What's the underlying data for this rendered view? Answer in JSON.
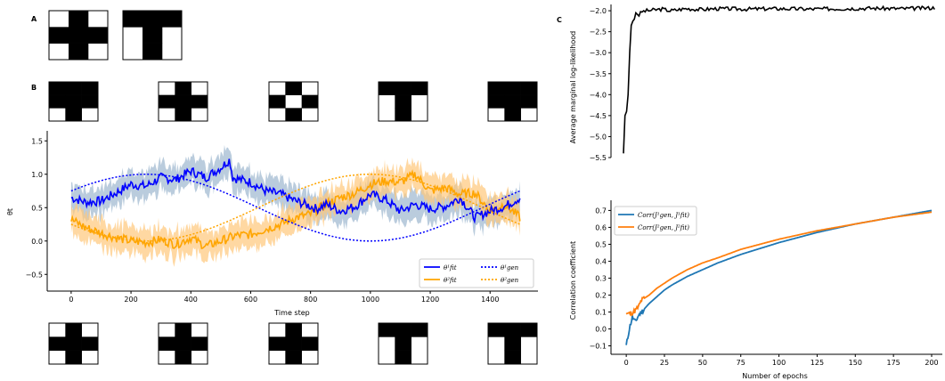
{
  "panels": {
    "A": "A",
    "B": "B",
    "C": "C"
  },
  "patterns": {
    "cross": [
      [
        0,
        1,
        0
      ],
      [
        1,
        1,
        1
      ],
      [
        0,
        1,
        0
      ]
    ],
    "tee": [
      [
        1,
        1,
        1
      ],
      [
        0,
        1,
        0
      ],
      [
        0,
        1,
        0
      ]
    ],
    "checker": [
      [
        0,
        1,
        0
      ],
      [
        1,
        0,
        1
      ],
      [
        0,
        1,
        0
      ]
    ]
  },
  "row_a": [
    "cross",
    "tee"
  ],
  "row_b": [
    "tee_b",
    "cross",
    "checker",
    "tee",
    "tee_b"
  ],
  "row_bottom": [
    "cross",
    "cross",
    "cross",
    "tee",
    "tee_narrow"
  ],
  "chart_data": [
    {
      "id": "theta",
      "type": "line",
      "xlabel": "Time step",
      "ylabel": "θt",
      "xlim": [
        -80,
        1560
      ],
      "ylim": [
        -0.75,
        1.65
      ],
      "xticks": [
        "0",
        "200",
        "400",
        "600",
        "800",
        "1000",
        "1200",
        "1400"
      ],
      "yticks": [
        "−0.5",
        "0.0",
        "0.5",
        "1.0",
        "1.5"
      ],
      "legend_position": "lower-right",
      "colors": {
        "theta1": "#0000ff",
        "theta2": "#ffa500",
        "band1": "#9db6cf",
        "band2": "#ffc87a"
      },
      "series": [
        {
          "name": "θ¹fit",
          "style": "solid",
          "color": "#0000ff",
          "x": [
            0,
            50,
            100,
            150,
            200,
            250,
            300,
            350,
            400,
            450,
            500,
            530,
            540,
            600,
            650,
            700,
            750,
            800,
            820,
            850,
            900,
            950,
            1000,
            1050,
            1100,
            1150,
            1200,
            1250,
            1300,
            1350,
            1400,
            1450,
            1500
          ],
          "y": [
            0.65,
            0.58,
            0.6,
            0.72,
            0.85,
            0.82,
            0.95,
            0.92,
            1.05,
            0.95,
            1.1,
            1.22,
            0.95,
            0.88,
            0.75,
            0.7,
            0.6,
            0.52,
            0.48,
            0.55,
            0.45,
            0.52,
            0.7,
            0.62,
            0.45,
            0.55,
            0.48,
            0.52,
            0.65,
            0.35,
            0.45,
            0.52,
            0.65
          ]
        },
        {
          "name": "θ²fit",
          "style": "solid",
          "color": "#ffa500",
          "x": [
            0,
            50,
            100,
            150,
            200,
            250,
            300,
            350,
            400,
            450,
            500,
            550,
            600,
            650,
            700,
            750,
            800,
            850,
            900,
            950,
            1000,
            1050,
            1100,
            1150,
            1200,
            1250,
            1300,
            1350,
            1400,
            1450,
            1500
          ],
          "y": [
            0.32,
            0.2,
            0.12,
            0.05,
            0.0,
            -0.02,
            0.02,
            -0.05,
            0.05,
            -0.08,
            0.0,
            0.08,
            0.1,
            0.18,
            0.25,
            0.35,
            0.4,
            0.55,
            0.65,
            0.72,
            0.85,
            0.9,
            0.88,
            1.0,
            0.75,
            0.8,
            0.7,
            0.72,
            0.45,
            0.55,
            0.35
          ]
        },
        {
          "name": "θ¹gen",
          "style": "dotted",
          "color": "#0000ff",
          "formula": "0.5+0.5*sin(2*pi*t/1500+pi/6)"
        },
        {
          "name": "θ²gen",
          "style": "dotted",
          "color": "#ffa500",
          "formula": "0.5-0.5*sin(2*pi*t/1500+pi/6)"
        }
      ]
    },
    {
      "id": "loglik",
      "type": "line",
      "xlabel": "",
      "ylabel": "Average marginal log-likelihood",
      "xlim": [
        -8,
        205
      ],
      "ylim": [
        -5.5,
        -1.85
      ],
      "yticks": [
        "−2.0",
        "−2.5",
        "−3.0",
        "−3.5",
        "−4.0",
        "−4.5",
        "−5.0",
        "−5.5"
      ],
      "series": [
        {
          "name": "",
          "color": "#000000",
          "x": [
            0,
            1,
            2,
            3,
            4,
            5,
            6,
            7,
            8,
            10,
            12,
            15,
            20,
            25,
            30,
            40,
            50,
            60,
            80,
            100,
            120,
            140,
            160,
            180,
            200
          ],
          "y": [
            -5.4,
            -4.5,
            -4.4,
            -4.0,
            -3.0,
            -2.35,
            -2.25,
            -2.2,
            -2.05,
            -2.1,
            -2.02,
            -2.0,
            -1.98,
            -1.96,
            -2.0,
            -1.95,
            -1.97,
            -1.95,
            -1.96,
            -1.95,
            -1.96,
            -1.95,
            -1.94,
            -1.95,
            -1.93
          ]
        }
      ]
    },
    {
      "id": "corr",
      "type": "line",
      "xlabel": "Number of epochs",
      "ylabel": "Correlation coefficient",
      "xlim": [
        -10,
        207
      ],
      "ylim": [
        -0.15,
        0.76
      ],
      "xticks": [
        "0",
        "25",
        "50",
        "75",
        "100",
        "125",
        "150",
        "175",
        "200"
      ],
      "yticks": [
        "−0.1",
        "0.0",
        "0.1",
        "0.2",
        "0.3",
        "0.4",
        "0.5",
        "0.6",
        "0.7"
      ],
      "legend_position": "top-left",
      "series": [
        {
          "name": "Corr(J¹gen, J¹fit)",
          "color": "#1f77b4",
          "x": [
            0,
            2,
            4,
            6,
            8,
            10,
            15,
            20,
            25,
            30,
            40,
            50,
            60,
            75,
            100,
            125,
            150,
            175,
            200
          ],
          "y": [
            -0.1,
            0.0,
            0.07,
            0.04,
            0.08,
            0.1,
            0.15,
            0.19,
            0.23,
            0.26,
            0.31,
            0.35,
            0.39,
            0.44,
            0.51,
            0.57,
            0.62,
            0.66,
            0.7
          ]
        },
        {
          "name": "Corr(J²gen, J²fit)",
          "color": "#ff7f0e",
          "x": [
            0,
            2,
            5,
            8,
            10,
            15,
            20,
            25,
            30,
            40,
            50,
            60,
            75,
            100,
            125,
            150,
            175,
            200
          ],
          "y": [
            0.09,
            0.09,
            0.1,
            0.13,
            0.17,
            0.2,
            0.24,
            0.27,
            0.3,
            0.35,
            0.39,
            0.42,
            0.47,
            0.53,
            0.58,
            0.62,
            0.66,
            0.69
          ]
        }
      ]
    }
  ]
}
